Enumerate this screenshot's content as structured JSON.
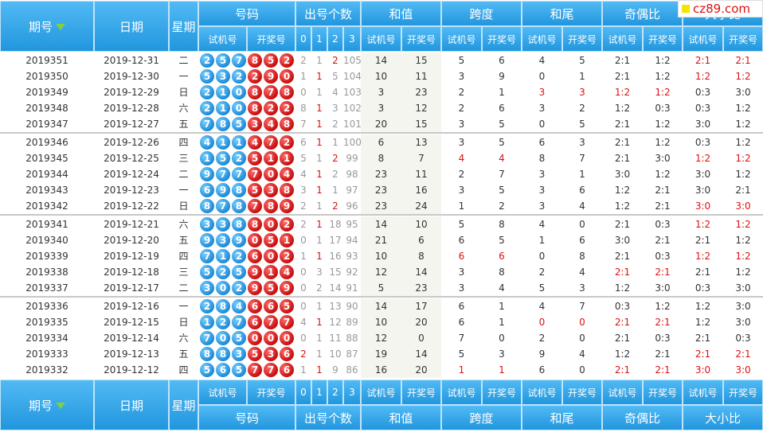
{
  "header": {
    "period": "期号",
    "date": "日期",
    "weekday": "星期",
    "numbers": "号码",
    "count": "出号个数",
    "count_cols": [
      "0",
      "1",
      "2",
      "3"
    ],
    "groups": [
      "和值",
      "跨度",
      "和尾",
      "奇偶比",
      "大小比"
    ],
    "sub_labels": [
      "试机号",
      "开奖号"
    ]
  },
  "badge": "cz89.com",
  "colors": {
    "header_blue": "#2196de",
    "red_ball": "#c80c0c",
    "blue_ball": "#1b8ad8",
    "highlight": "#d11111"
  },
  "rows": [
    {
      "period": "2019351",
      "date": "2019-12-31",
      "wd": "二",
      "test": [
        "2",
        "5",
        "7"
      ],
      "draw": [
        "8",
        "5",
        "2"
      ],
      "cnt": [
        "2",
        "1",
        "2",
        "105"
      ],
      "cnt_red": 2,
      "sum": [
        "14",
        "15"
      ],
      "span": [
        "5",
        "6"
      ],
      "tail": [
        "4",
        "5"
      ],
      "oe": [
        "2:1",
        "1:2"
      ],
      "bs": [
        "2:1",
        "2:1"
      ],
      "red": [
        "bs0",
        "bs1"
      ]
    },
    {
      "period": "2019350",
      "date": "2019-12-30",
      "wd": "一",
      "test": [
        "5",
        "3",
        "2"
      ],
      "draw": [
        "2",
        "9",
        "0"
      ],
      "cnt": [
        "1",
        "1",
        "5",
        "104"
      ],
      "cnt_red": 1,
      "sum": [
        "10",
        "11"
      ],
      "span": [
        "3",
        "9"
      ],
      "tail": [
        "0",
        "1"
      ],
      "oe": [
        "2:1",
        "1:2"
      ],
      "bs": [
        "1:2",
        "1:2"
      ],
      "red": [
        "bs0",
        "bs1"
      ]
    },
    {
      "period": "2019349",
      "date": "2019-12-29",
      "wd": "日",
      "test": [
        "2",
        "1",
        "0"
      ],
      "draw": [
        "8",
        "7",
        "8"
      ],
      "cnt": [
        "0",
        "1",
        "4",
        "103"
      ],
      "cnt_red": 0,
      "sum": [
        "3",
        "23"
      ],
      "span": [
        "2",
        "1"
      ],
      "tail": [
        "3",
        "3"
      ],
      "oe": [
        "1:2",
        "1:2"
      ],
      "bs": [
        "0:3",
        "3:0"
      ],
      "red": [
        "tail0",
        "tail1",
        "oe0",
        "oe1"
      ]
    },
    {
      "period": "2019348",
      "date": "2019-12-28",
      "wd": "六",
      "test": [
        "2",
        "1",
        "0"
      ],
      "draw": [
        "8",
        "2",
        "2"
      ],
      "cnt": [
        "8",
        "1",
        "3",
        "102"
      ],
      "cnt_red": 1,
      "sum": [
        "3",
        "12"
      ],
      "span": [
        "2",
        "6"
      ],
      "tail": [
        "3",
        "2"
      ],
      "oe": [
        "1:2",
        "0:3"
      ],
      "bs": [
        "0:3",
        "1:2"
      ],
      "red": []
    },
    {
      "period": "2019347",
      "date": "2019-12-27",
      "wd": "五",
      "test": [
        "7",
        "8",
        "5"
      ],
      "draw": [
        "3",
        "4",
        "8"
      ],
      "cnt": [
        "7",
        "1",
        "2",
        "101"
      ],
      "cnt_red": 1,
      "sum": [
        "20",
        "15"
      ],
      "span": [
        "3",
        "5"
      ],
      "tail": [
        "0",
        "5"
      ],
      "oe": [
        "2:1",
        "1:2"
      ],
      "bs": [
        "3:0",
        "1:2"
      ],
      "red": []
    },
    {
      "period": "2019346",
      "date": "2019-12-26",
      "wd": "四",
      "test": [
        "4",
        "1",
        "1"
      ],
      "draw": [
        "4",
        "7",
        "2"
      ],
      "cnt": [
        "6",
        "1",
        "1",
        "100"
      ],
      "cnt_red": 1,
      "sum": [
        "6",
        "13"
      ],
      "span": [
        "3",
        "5"
      ],
      "tail": [
        "6",
        "3"
      ],
      "oe": [
        "2:1",
        "1:2"
      ],
      "bs": [
        "0:3",
        "1:2"
      ],
      "red": []
    },
    {
      "period": "2019345",
      "date": "2019-12-25",
      "wd": "三",
      "test": [
        "1",
        "5",
        "2"
      ],
      "draw": [
        "5",
        "1",
        "1"
      ],
      "cnt": [
        "5",
        "1",
        "2",
        "99"
      ],
      "cnt_red": 2,
      "sum": [
        "8",
        "7"
      ],
      "span": [
        "4",
        "4"
      ],
      "tail": [
        "8",
        "7"
      ],
      "oe": [
        "2:1",
        "3:0"
      ],
      "bs": [
        "1:2",
        "1:2"
      ],
      "red": [
        "span0",
        "span1",
        "bs0",
        "bs1"
      ]
    },
    {
      "period": "2019344",
      "date": "2019-12-24",
      "wd": "二",
      "test": [
        "9",
        "7",
        "7"
      ],
      "draw": [
        "7",
        "0",
        "4"
      ],
      "cnt": [
        "4",
        "1",
        "2",
        "98"
      ],
      "cnt_red": 1,
      "sum": [
        "23",
        "11"
      ],
      "span": [
        "2",
        "7"
      ],
      "tail": [
        "3",
        "1"
      ],
      "oe": [
        "3:0",
        "1:2"
      ],
      "bs": [
        "3:0",
        "1:2"
      ],
      "red": []
    },
    {
      "period": "2019343",
      "date": "2019-12-23",
      "wd": "一",
      "test": [
        "6",
        "9",
        "8"
      ],
      "draw": [
        "5",
        "3",
        "8"
      ],
      "cnt": [
        "3",
        "1",
        "1",
        "97"
      ],
      "cnt_red": 1,
      "sum": [
        "23",
        "16"
      ],
      "span": [
        "3",
        "5"
      ],
      "tail": [
        "3",
        "6"
      ],
      "oe": [
        "1:2",
        "2:1"
      ],
      "bs": [
        "3:0",
        "2:1"
      ],
      "red": []
    },
    {
      "period": "2019342",
      "date": "2019-12-22",
      "wd": "日",
      "test": [
        "8",
        "7",
        "8"
      ],
      "draw": [
        "7",
        "8",
        "9"
      ],
      "cnt": [
        "2",
        "1",
        "2",
        "96"
      ],
      "cnt_red": 2,
      "sum": [
        "23",
        "24"
      ],
      "span": [
        "1",
        "2"
      ],
      "tail": [
        "3",
        "4"
      ],
      "oe": [
        "1:2",
        "2:1"
      ],
      "bs": [
        "3:0",
        "3:0"
      ],
      "red": [
        "bs0",
        "bs1"
      ]
    },
    {
      "period": "2019341",
      "date": "2019-12-21",
      "wd": "六",
      "test": [
        "3",
        "3",
        "8"
      ],
      "draw": [
        "8",
        "0",
        "2"
      ],
      "cnt": [
        "2",
        "1",
        "18",
        "95"
      ],
      "cnt_red": 1,
      "sum": [
        "14",
        "10"
      ],
      "span": [
        "5",
        "8"
      ],
      "tail": [
        "4",
        "0"
      ],
      "oe": [
        "2:1",
        "0:3"
      ],
      "bs": [
        "1:2",
        "1:2"
      ],
      "red": [
        "bs0",
        "bs1"
      ]
    },
    {
      "period": "2019340",
      "date": "2019-12-20",
      "wd": "五",
      "test": [
        "9",
        "3",
        "9"
      ],
      "draw": [
        "0",
        "5",
        "1"
      ],
      "cnt": [
        "0",
        "1",
        "17",
        "94"
      ],
      "cnt_red": 0,
      "sum": [
        "21",
        "6"
      ],
      "span": [
        "6",
        "5"
      ],
      "tail": [
        "1",
        "6"
      ],
      "oe": [
        "3:0",
        "2:1"
      ],
      "bs": [
        "2:1",
        "1:2"
      ],
      "red": []
    },
    {
      "period": "2019339",
      "date": "2019-12-19",
      "wd": "四",
      "test": [
        "7",
        "1",
        "2"
      ],
      "draw": [
        "6",
        "0",
        "2"
      ],
      "cnt": [
        "1",
        "1",
        "16",
        "93"
      ],
      "cnt_red": 1,
      "sum": [
        "10",
        "8"
      ],
      "span": [
        "6",
        "6"
      ],
      "tail": [
        "0",
        "8"
      ],
      "oe": [
        "2:1",
        "0:3"
      ],
      "bs": [
        "1:2",
        "1:2"
      ],
      "red": [
        "span0",
        "span1",
        "bs0",
        "bs1"
      ]
    },
    {
      "period": "2019338",
      "date": "2019-12-18",
      "wd": "三",
      "test": [
        "5",
        "2",
        "5"
      ],
      "draw": [
        "9",
        "1",
        "4"
      ],
      "cnt": [
        "0",
        "3",
        "15",
        "92"
      ],
      "cnt_red": 0,
      "sum": [
        "12",
        "14"
      ],
      "span": [
        "3",
        "8"
      ],
      "tail": [
        "2",
        "4"
      ],
      "oe": [
        "2:1",
        "2:1"
      ],
      "bs": [
        "2:1",
        "1:2"
      ],
      "red": [
        "oe0",
        "oe1"
      ]
    },
    {
      "period": "2019337",
      "date": "2019-12-17",
      "wd": "二",
      "test": [
        "3",
        "0",
        "2"
      ],
      "draw": [
        "9",
        "5",
        "9"
      ],
      "cnt": [
        "0",
        "2",
        "14",
        "91"
      ],
      "cnt_red": 0,
      "sum": [
        "5",
        "23"
      ],
      "span": [
        "3",
        "4"
      ],
      "tail": [
        "5",
        "3"
      ],
      "oe": [
        "1:2",
        "3:0"
      ],
      "bs": [
        "0:3",
        "3:0"
      ],
      "red": []
    },
    {
      "period": "2019336",
      "date": "2019-12-16",
      "wd": "一",
      "test": [
        "2",
        "8",
        "4"
      ],
      "draw": [
        "6",
        "6",
        "5"
      ],
      "cnt": [
        "0",
        "1",
        "13",
        "90"
      ],
      "cnt_red": 0,
      "sum": [
        "14",
        "17"
      ],
      "span": [
        "6",
        "1"
      ],
      "tail": [
        "4",
        "7"
      ],
      "oe": [
        "0:3",
        "1:2"
      ],
      "bs": [
        "1:2",
        "3:0"
      ],
      "red": []
    },
    {
      "period": "2019335",
      "date": "2019-12-15",
      "wd": "日",
      "test": [
        "1",
        "2",
        "7"
      ],
      "draw": [
        "6",
        "7",
        "7"
      ],
      "cnt": [
        "4",
        "1",
        "12",
        "89"
      ],
      "cnt_red": 1,
      "sum": [
        "10",
        "20"
      ],
      "span": [
        "6",
        "1"
      ],
      "tail": [
        "0",
        "0"
      ],
      "oe": [
        "2:1",
        "2:1"
      ],
      "bs": [
        "1:2",
        "3:0"
      ],
      "red": [
        "tail0",
        "tail1",
        "oe0",
        "oe1"
      ]
    },
    {
      "period": "2019334",
      "date": "2019-12-14",
      "wd": "六",
      "test": [
        "7",
        "0",
        "5"
      ],
      "draw": [
        "0",
        "0",
        "0"
      ],
      "cnt": [
        "0",
        "1",
        "11",
        "88"
      ],
      "cnt_red": 0,
      "sum": [
        "12",
        "0"
      ],
      "span": [
        "7",
        "0"
      ],
      "tail": [
        "2",
        "0"
      ],
      "oe": [
        "2:1",
        "0:3"
      ],
      "bs": [
        "2:1",
        "0:3"
      ],
      "red": []
    },
    {
      "period": "2019333",
      "date": "2019-12-13",
      "wd": "五",
      "test": [
        "8",
        "8",
        "3"
      ],
      "draw": [
        "5",
        "3",
        "6"
      ],
      "cnt": [
        "2",
        "1",
        "10",
        "87"
      ],
      "cnt_red": 0,
      "sum": [
        "19",
        "14"
      ],
      "span": [
        "5",
        "3"
      ],
      "tail": [
        "9",
        "4"
      ],
      "oe": [
        "1:2",
        "2:1"
      ],
      "bs": [
        "2:1",
        "2:1"
      ],
      "red": [
        "bs0",
        "bs1"
      ]
    },
    {
      "period": "2019332",
      "date": "2019-12-12",
      "wd": "四",
      "test": [
        "5",
        "6",
        "5"
      ],
      "draw": [
        "7",
        "7",
        "6"
      ],
      "cnt": [
        "1",
        "1",
        "9",
        "86"
      ],
      "cnt_red": 1,
      "sum": [
        "16",
        "20"
      ],
      "span": [
        "1",
        "1"
      ],
      "tail": [
        "6",
        "0"
      ],
      "oe": [
        "2:1",
        "2:1"
      ],
      "bs": [
        "3:0",
        "3:0"
      ],
      "red": [
        "span0",
        "span1",
        "oe0",
        "oe1",
        "bs0",
        "bs1"
      ]
    }
  ]
}
